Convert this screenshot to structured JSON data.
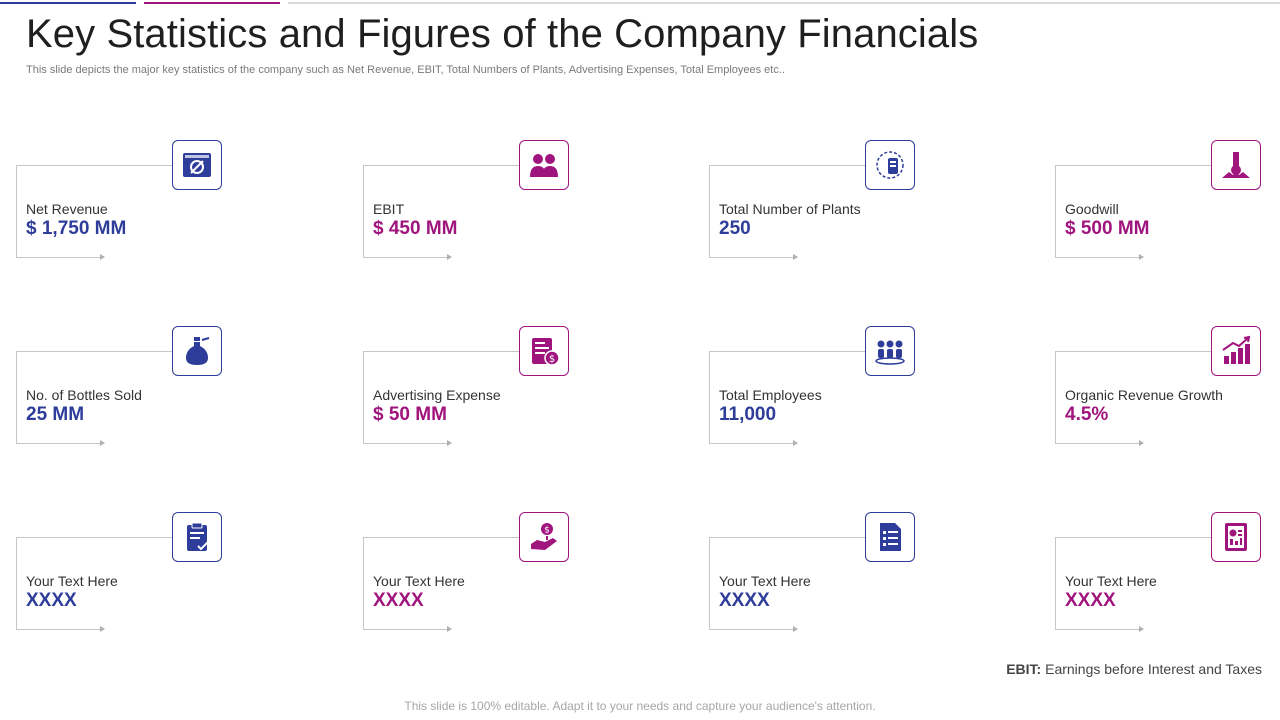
{
  "title": "Key Statistics and Figures of the Company Financials",
  "subtitle": "This slide depicts the major key statistics of the company such as Net Revenue, EBIT, Total Numbers of Plants, Advertising Expenses, Total Employees etc..",
  "colors": {
    "blue": "#2e3d9a",
    "magenta": "#a0147e"
  },
  "cards": [
    {
      "label": "Net Revenue",
      "value": "$ 1,750 MM",
      "color": "blue",
      "icon": "revenue-icon"
    },
    {
      "label": "EBIT",
      "value": "$ 450 MM",
      "color": "magenta",
      "icon": "team-icon"
    },
    {
      "label": "Total Number of Plants",
      "value": "250",
      "color": "blue",
      "icon": "plant-cycle-icon"
    },
    {
      "label": "Goodwill",
      "value": "$ 500 MM",
      "color": "magenta",
      "icon": "goodwill-icon"
    },
    {
      "label": "No. of Bottles Sold",
      "value": "25 MM",
      "color": "blue",
      "icon": "bottle-icon"
    },
    {
      "label": "Advertising Expense",
      "value": "$ 50 MM",
      "color": "magenta",
      "icon": "invoice-icon"
    },
    {
      "label": "Total Employees",
      "value": "11,000",
      "color": "blue",
      "icon": "employees-icon"
    },
    {
      "label": "Organic Revenue Growth",
      "value": "4.5%",
      "color": "magenta",
      "icon": "growth-chart-icon"
    },
    {
      "label": "Your Text Here",
      "value": "XXXX",
      "color": "blue",
      "icon": "clipboard-icon"
    },
    {
      "label": "Your Text Here",
      "value": "XXXX",
      "color": "magenta",
      "icon": "money-hand-icon"
    },
    {
      "label": "Your Text Here",
      "value": "XXXX",
      "color": "blue",
      "icon": "checklist-icon"
    },
    {
      "label": "Your Text Here",
      "value": "XXXX",
      "color": "magenta",
      "icon": "report-icon"
    }
  ],
  "footnote": {
    "term": "EBIT:",
    "definition": "Earnings before Interest and Taxes"
  },
  "disclaimer": "This slide is 100% editable. Adapt it to your needs and capture your audience's attention."
}
